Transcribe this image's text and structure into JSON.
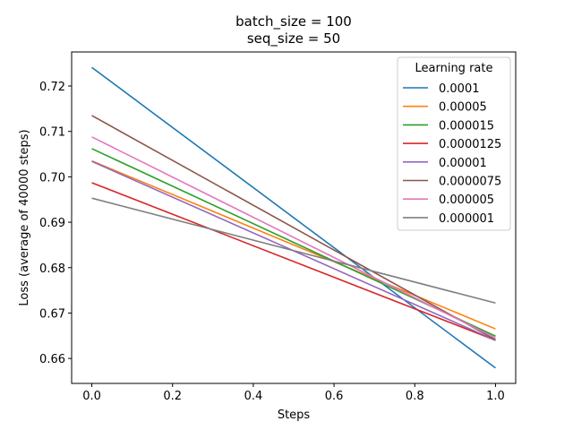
{
  "chart_data": {
    "type": "line",
    "title_lines": [
      "batch_size = 100",
      "seq_size = 50"
    ],
    "xlabel": "Steps",
    "ylabel": "Loss (average of 40000 steps)",
    "xlim": [
      -0.05,
      1.05
    ],
    "ylim": [
      0.6545,
      0.7275
    ],
    "xticks": [
      0.0,
      0.2,
      0.4,
      0.6,
      0.8,
      1.0
    ],
    "xtick_labels": [
      "0.0",
      "0.2",
      "0.4",
      "0.6",
      "0.8",
      "1.0"
    ],
    "yticks": [
      0.66,
      0.67,
      0.68,
      0.69,
      0.7,
      0.71,
      0.72
    ],
    "ytick_labels": [
      "0.66",
      "0.67",
      "0.68",
      "0.69",
      "0.70",
      "0.71",
      "0.72"
    ],
    "grid": false,
    "legend": {
      "title": "Learning rate",
      "position": "top-right"
    },
    "x": [
      0.0,
      1.0
    ],
    "series": [
      {
        "name": "0.0001",
        "color": "#1f77b4",
        "values": [
          0.7241,
          0.6579
        ]
      },
      {
        "name": "0.00005",
        "color": "#ff7f0e",
        "values": [
          0.7035,
          0.6665
        ]
      },
      {
        "name": "0.000015",
        "color": "#2ca02c",
        "values": [
          0.7062,
          0.6649
        ]
      },
      {
        "name": "0.0000125",
        "color": "#d62728",
        "values": [
          0.6987,
          0.664
        ]
      },
      {
        "name": "0.00001",
        "color": "#9467bd",
        "values": [
          0.7034,
          0.664
        ]
      },
      {
        "name": "0.0000075",
        "color": "#8c564b",
        "values": [
          0.7135,
          0.6641
        ]
      },
      {
        "name": "0.000005",
        "color": "#e377c2",
        "values": [
          0.7088,
          0.6645
        ]
      },
      {
        "name": "0.000001",
        "color": "#7f7f7f",
        "values": [
          0.6953,
          0.6722
        ]
      }
    ]
  }
}
